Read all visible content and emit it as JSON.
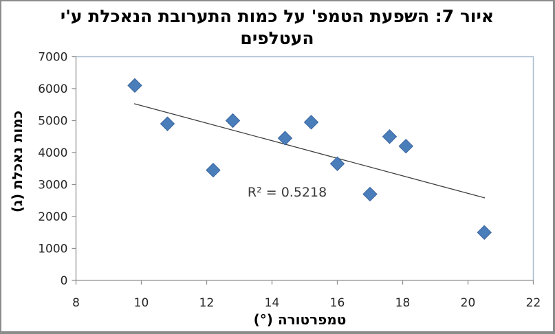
{
  "window": {
    "background": "#ffffff",
    "border_color": "#8c8c8c"
  },
  "chart_data": {
    "type": "scatter",
    "title": "איור 7: השפעת הטמפ' על כמות התערובת הנאכלת ע'י העטלפים",
    "title_lines": [
      "איור 7: השפעת הטמפ' על כמות התערובת הנאכלת ע'י",
      "העטלפים"
    ],
    "xlabel": "טמפרטורה (°)",
    "ylabel": "כמות נאכלת (ג)",
    "xlim": [
      8,
      22
    ],
    "ylim": [
      0,
      7000
    ],
    "x_ticks": [
      8,
      10,
      12,
      14,
      16,
      18,
      20,
      22
    ],
    "y_ticks": [
      0,
      1000,
      2000,
      3000,
      4000,
      5000,
      6000,
      7000
    ],
    "grid": "off",
    "legend": "none",
    "points": [
      [
        9.8,
        6100
      ],
      [
        10.8,
        4900
      ],
      [
        12.2,
        3450
      ],
      [
        12.8,
        5000
      ],
      [
        14.4,
        4450
      ],
      [
        15.2,
        4950
      ],
      [
        16.0,
        3650
      ],
      [
        17.0,
        2700
      ],
      [
        17.6,
        4500
      ],
      [
        18.1,
        4200
      ],
      [
        20.5,
        1500
      ]
    ],
    "trendline": {
      "x1": 9.78,
      "y1": 5530,
      "x2": 20.52,
      "y2": 2580,
      "r2": 0.5218
    },
    "annotations": [
      {
        "text": "R² = 0.5218",
        "x": 13.25,
        "y": 2760
      }
    ],
    "colors": {
      "marker_fill": "#4a7ebb",
      "marker_border": "#3a639c",
      "trendline": "#3f3f3f",
      "axis": "#8f8f8f",
      "plot_border": "#a8bcd0",
      "tick_text": "#262626"
    }
  }
}
